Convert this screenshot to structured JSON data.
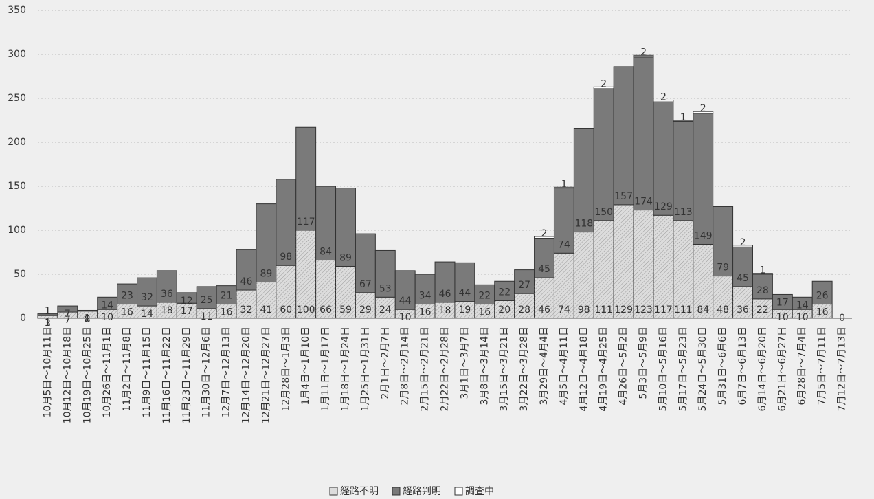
{
  "chart_data": {
    "type": "stacked_bar",
    "categories": [
      "10月5日～10月11日",
      "10月12日～10月18日",
      "10月19日～10月25日",
      "10月26日～11月1日",
      "11月2日～11月8日",
      "11月9日～11月15日",
      "11月16日～11月22日",
      "11月23日～11月29日",
      "11月30日～12月6日",
      "12月7日～12月13日",
      "12月14日～12月20日",
      "12月21日～12月27日",
      "12月28日～1月3日",
      "1月4日～1月10日",
      "1月11日～1月17日",
      "1月18日～1月24日",
      "1月25日～1月31日",
      "2月1日～2月7日",
      "2月8日～2月14日",
      "2月15日～2月21日",
      "2月22日～2月28日",
      "3月1日～3月7日",
      "3月8日～3月14日",
      "3月15日～3月21日",
      "3月22日～3月28日",
      "3月29日～4月4日",
      "4月5日～4月11日",
      "4月12日～4月18日",
      "4月19日～4月25日",
      "4月26日～5月2日",
      "5月3日～5月9日",
      "5月10日～5月16日",
      "5月17日～5月23日",
      "5月24日～5月30日",
      "5月31日～6月6日",
      "6月7日～6月13日",
      "6月14日～6月20日",
      "6月21日～6月27日",
      "6月28日～7月4日",
      "7月5日～7月11日",
      "7月12日～7月13日"
    ],
    "series": [
      {
        "name": "経路不明",
        "color": "#dcdcdc",
        "values": [
          3,
          7,
          8,
          10,
          16,
          14,
          18,
          17,
          11,
          16,
          32,
          41,
          60,
          100,
          66,
          59,
          29,
          24,
          10,
          16,
          18,
          19,
          16,
          20,
          28,
          46,
          74,
          98,
          111,
          129,
          123,
          117,
          111,
          84,
          48,
          36,
          22,
          10,
          10,
          16,
          0
        ]
      },
      {
        "name": "経路判明",
        "color": "#7a7a7a",
        "values": [
          1,
          7,
          1,
          14,
          23,
          32,
          36,
          12,
          25,
          21,
          46,
          89,
          98,
          117,
          84,
          89,
          67,
          53,
          44,
          34,
          46,
          44,
          22,
          22,
          27,
          45,
          74,
          118,
          150,
          157,
          174,
          129,
          113,
          149,
          79,
          45,
          28,
          17,
          14,
          26,
          null
        ]
      },
      {
        "name": "調査中",
        "color": "#ffffff",
        "values": [
          1,
          null,
          null,
          null,
          null,
          null,
          null,
          null,
          null,
          null,
          null,
          null,
          null,
          null,
          null,
          null,
          null,
          null,
          null,
          null,
          null,
          null,
          null,
          null,
          null,
          2,
          1,
          null,
          2,
          null,
          2,
          2,
          1,
          2,
          null,
          2,
          1,
          null,
          null,
          null,
          null
        ]
      }
    ],
    "ylim": [
      0,
      350
    ],
    "yticks": [
      0,
      50,
      100,
      150,
      200,
      250,
      300,
      350
    ],
    "grid": true
  }
}
